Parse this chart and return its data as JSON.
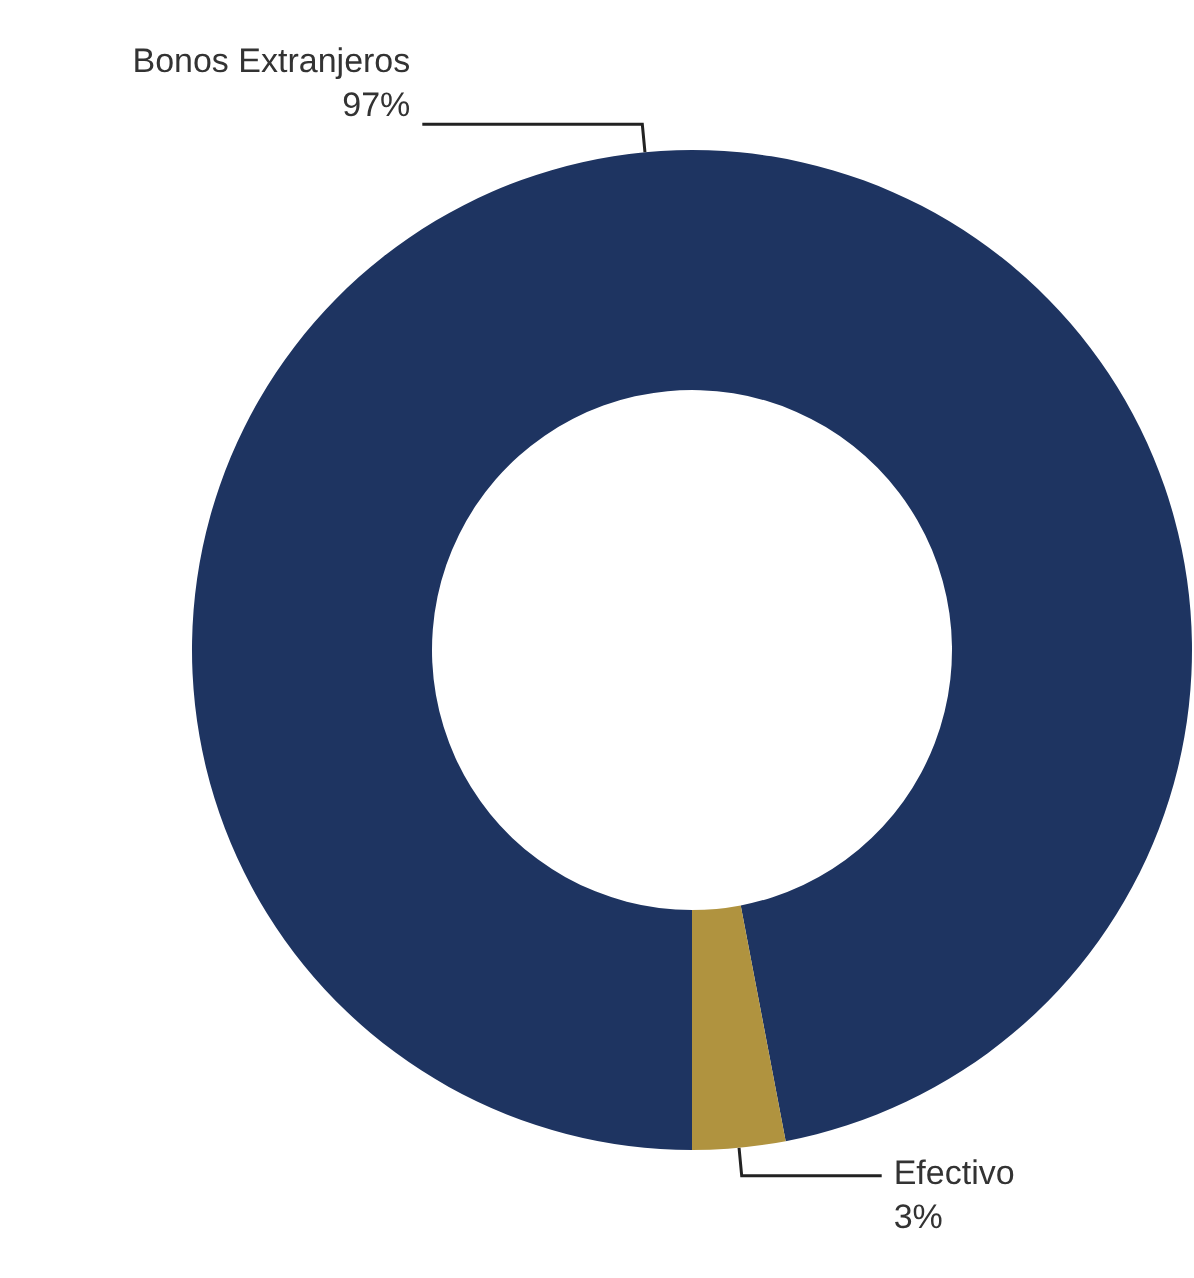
{
  "chart_data": {
    "type": "donut",
    "categories": [
      "Bonos Extranjeros",
      "Efectivo"
    ],
    "values": [
      97,
      3
    ],
    "value_labels": [
      "97%",
      "3%"
    ],
    "colors": [
      "#1e3461",
      "#b0933f"
    ],
    "legend": false
  }
}
